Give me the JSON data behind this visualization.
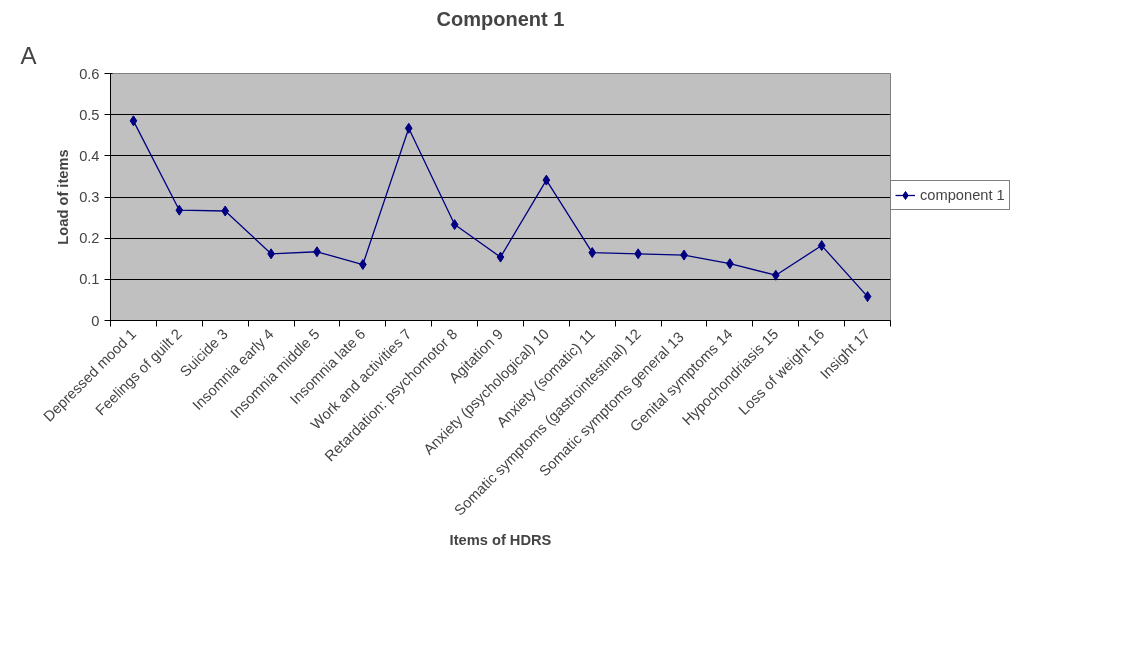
{
  "chart_data": {
    "type": "line",
    "title": "Component 1",
    "xlabel": "Items of HDRS",
    "ylabel": "Load of items",
    "annotations": [
      "A"
    ],
    "categories": [
      "Depressed mood 1",
      "Feelings of guilt 2",
      "Suicide 3",
      "Insomnia early 4",
      "Insomnia middle 5",
      "Insomnia late 6",
      "Work and activities 7",
      "Retardation: psychomotor 8",
      "Agitation 9",
      "Anxiety (psychological) 10",
      "Anxiety (somatic) 11",
      "Somatic symptoms (gastrointestinal) 12",
      "Somatic  symptoms general 13",
      "Genital symptoms 14",
      "Hypochondriasis 15",
      "Loss of weight 16",
      "Insight 17"
    ],
    "series": [
      {
        "name": "component 1",
        "color": "#000080",
        "values": [
          0.485,
          0.268,
          0.266,
          0.162,
          0.167,
          0.136,
          0.467,
          0.233,
          0.154,
          0.341,
          0.165,
          0.162,
          0.159,
          0.138,
          0.11,
          0.182,
          0.058
        ]
      }
    ],
    "ylim": [
      0,
      0.6
    ],
    "yticks": [
      0,
      0.1,
      0.2,
      0.3,
      0.4,
      0.5,
      0.6
    ],
    "grid": "y",
    "legend": "right",
    "marker": "diamond",
    "line_style": "solid"
  }
}
